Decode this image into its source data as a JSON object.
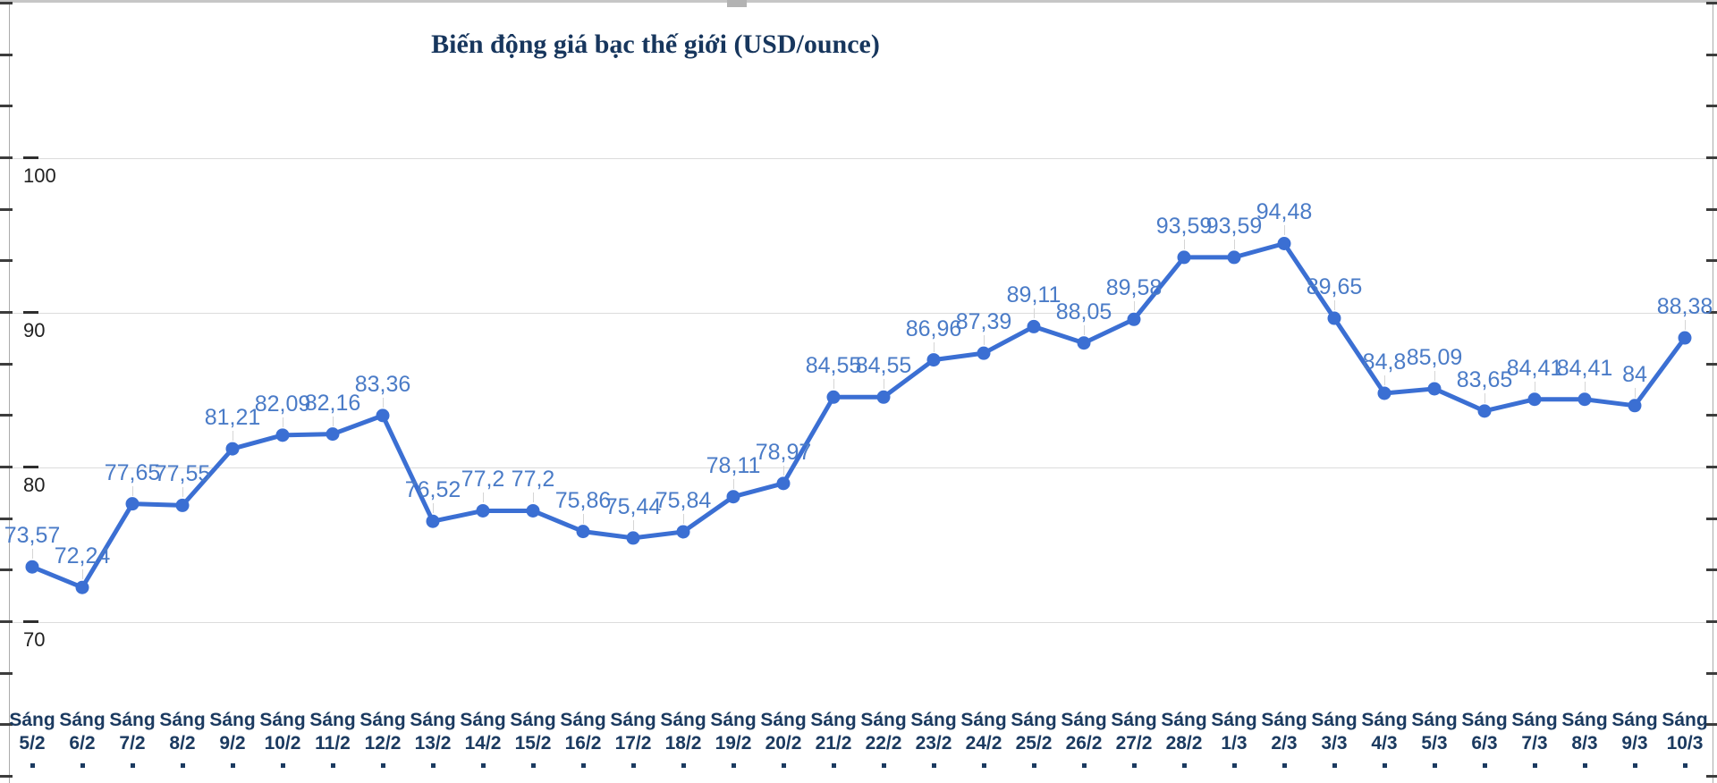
{
  "title": "Biến động giá bạc thế giới (USD/ounce)",
  "chart_data": {
    "type": "line",
    "title": "Biến động giá bạc thế giới (USD/ounce)",
    "x_prefix": "Sáng",
    "categories": [
      "5/2",
      "6/2",
      "7/2",
      "8/2",
      "9/2",
      "10/2",
      "11/2",
      "12/2",
      "13/2",
      "14/2",
      "15/2",
      "16/2",
      "17/2",
      "18/2",
      "19/2",
      "20/2",
      "21/2",
      "22/2",
      "23/2",
      "24/2",
      "25/2",
      "26/2",
      "27/2",
      "28/2",
      "1/3",
      "2/3",
      "3/3",
      "4/3",
      "5/3",
      "6/3",
      "7/3",
      "8/3",
      "9/3",
      "10/3"
    ],
    "values": [
      73.57,
      72.24,
      77.65,
      77.55,
      81.21,
      82.09,
      82.16,
      83.36,
      76.52,
      77.2,
      77.2,
      75.86,
      75.44,
      75.84,
      78.11,
      78.97,
      84.55,
      84.55,
      86.96,
      87.39,
      89.11,
      88.05,
      89.58,
      93.59,
      93.59,
      94.48,
      89.65,
      84.8,
      85.09,
      83.65,
      84.41,
      84.41,
      84,
      88.38
    ],
    "point_labels": [
      "73,57",
      "72,24",
      "77,65",
      "77,55",
      "81,21",
      "82,09",
      "82,16",
      "83,36",
      "76,52",
      "77,2",
      "77,2",
      "75,86",
      "75,44",
      "75,84",
      "78,11",
      "78,97",
      "84,55",
      "84,55",
      "86,96",
      "87,39",
      "89,11",
      "88,05",
      "89,58",
      "93,59",
      "93,59",
      "94,48",
      "89,65",
      "84,8",
      "85,09",
      "83,65",
      "84,41",
      "84,41",
      "84",
      "88,38"
    ],
    "y_tick_labels": [
      "100",
      "90",
      "80",
      "70"
    ],
    "y_ticks": [
      100,
      90,
      80,
      70
    ],
    "ylim": [
      60,
      110
    ],
    "grid": "horizontal-major",
    "legend": "none",
    "xlabel": "",
    "ylabel": "",
    "colors": {
      "line": "#3b6fd3",
      "point": "#3b6fd3",
      "point_label": "#4a7bc7",
      "title": "#17365d",
      "x_label": "#1b3a60",
      "y_label": "#212121",
      "gridline": "#dcdcdc",
      "axis": "#ababab",
      "tick": "#3c3c3c"
    }
  }
}
